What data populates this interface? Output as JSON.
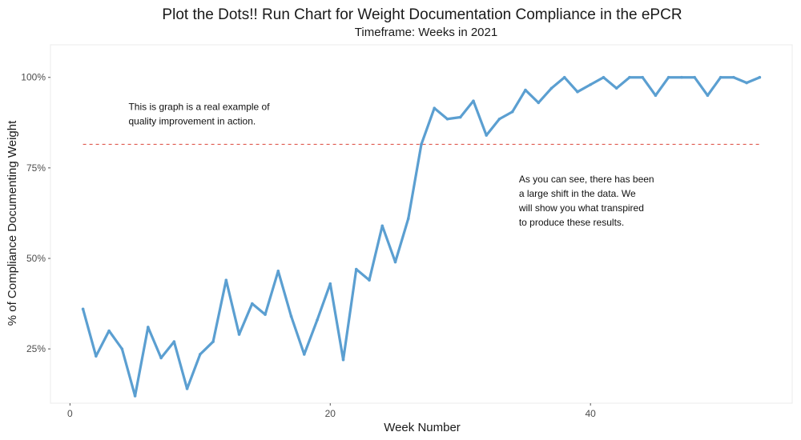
{
  "chart_data": {
    "type": "line",
    "title": "Plot the Dots!! Run Chart for Weight Documentation Compliance in the ePCR",
    "subtitle": "Timeframe: Weeks in 2021",
    "xlabel": "Week Number",
    "ylabel": "% of Compliance Documenting Weight",
    "xlim": [
      -1.5,
      55.5
    ],
    "ylim": [
      0.1,
      1.09
    ],
    "x_ticks": [
      0,
      20,
      40
    ],
    "x_tick_labels": [
      "0",
      "20",
      "40"
    ],
    "y_ticks": [
      0.25,
      0.5,
      0.75,
      1.0
    ],
    "y_tick_labels": [
      "25%",
      "50%",
      "75%",
      "100%"
    ],
    "grid": false,
    "line_color": "#5b9fd1",
    "reference_line": {
      "y": 0.815,
      "x_range": [
        1,
        53
      ],
      "color": "#e05a4f",
      "style": "dashed"
    },
    "annotations": [
      {
        "text": [
          "This is graph is a real example of",
          "quality improvement in action."
        ],
        "x": 4.5,
        "y": 0.91
      },
      {
        "text": [
          "As you can see, there has been",
          "a large shift in the data. We",
          "will show you what transpired",
          "to produce these results."
        ],
        "x": 34.5,
        "y": 0.71
      }
    ],
    "series": [
      {
        "x": [
          1,
          2,
          3,
          4,
          5,
          6,
          7,
          8,
          9,
          10,
          11,
          12,
          13,
          14,
          15,
          16,
          17,
          18,
          19,
          20,
          21,
          22,
          23,
          24,
          25,
          26,
          27,
          28,
          29,
          30,
          31,
          32,
          33,
          34,
          35,
          36,
          37,
          38,
          39,
          40,
          41,
          42,
          43,
          44,
          45,
          46,
          47,
          48,
          49,
          50,
          51,
          52,
          53
        ],
        "values": [
          0.36,
          0.23,
          0.3,
          0.25,
          0.12,
          0.31,
          0.225,
          0.27,
          0.14,
          0.235,
          0.27,
          0.44,
          0.29,
          0.375,
          0.345,
          0.465,
          0.34,
          0.235,
          0.33,
          0.43,
          0.22,
          0.47,
          0.44,
          0.59,
          0.49,
          0.61,
          0.815,
          0.915,
          0.885,
          0.89,
          0.935,
          0.84,
          0.885,
          0.905,
          0.965,
          0.93,
          0.97,
          1.0,
          0.96,
          0.98,
          1.0,
          0.97,
          1.0,
          1.0,
          0.95,
          1.0,
          1.0,
          1.0,
          0.95,
          1.0,
          1.0,
          0.985,
          1.0
        ]
      }
    ]
  }
}
